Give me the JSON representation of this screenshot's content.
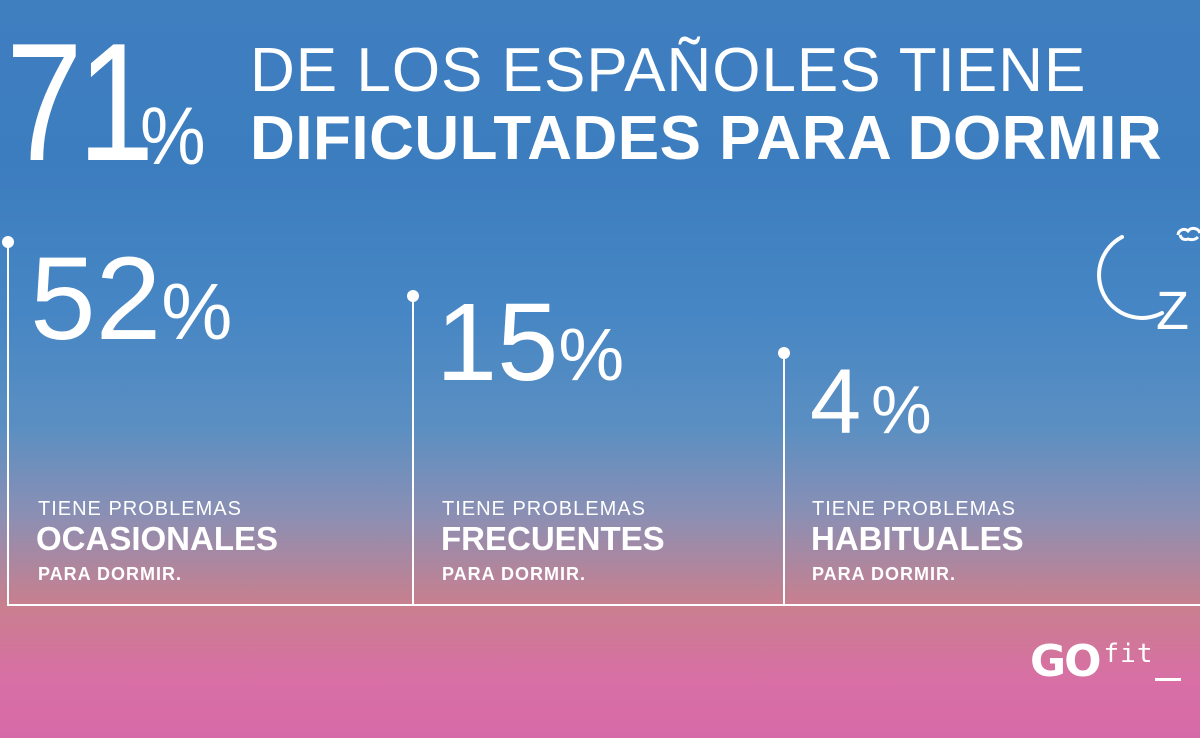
{
  "headline": {
    "big_number": "71",
    "big_percent": "%",
    "line1": "DE LOS ESPAÑOLES TIENE",
    "line2": "DIFICULTADES PARA DORMIR"
  },
  "stats": [
    {
      "number": "52",
      "percent": "%",
      "top": "TIENE PROBLEMAS",
      "emphasis": "OCASIONALES",
      "bottom": "PARA DORMIR."
    },
    {
      "number": "15",
      "percent": "%",
      "top": "TIENE PROBLEMAS",
      "emphasis": "FRECUENTES",
      "bottom": "PARA DORMIR."
    },
    {
      "number": "4",
      "percent": "%",
      "top": "TIENE PROBLEMAS",
      "emphasis": "HABITUALES",
      "bottom": "PARA DORMIR."
    }
  ],
  "icon": {
    "name": "moon-sleep-icon",
    "z_letter": "Z"
  },
  "logo": {
    "go": "GO",
    "fit": "fit"
  },
  "colors": {
    "text": "#ffffff",
    "sky_top": "#3f7fc0",
    "sky_bottom": "#d66aa8"
  }
}
